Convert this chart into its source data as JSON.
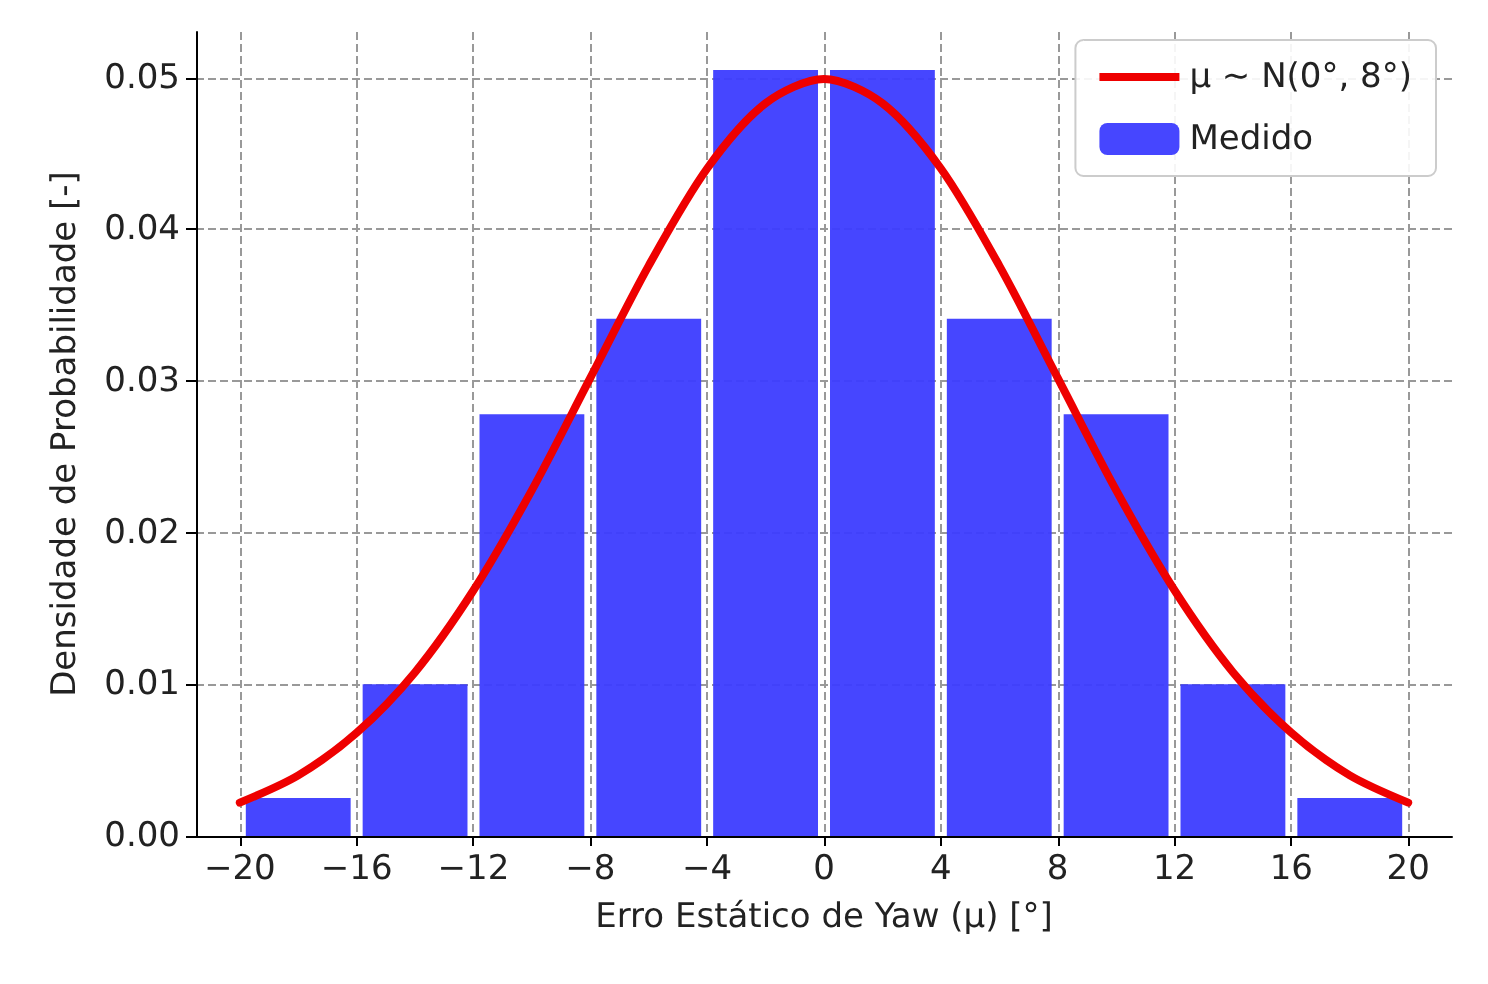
{
  "chart_data": {
    "type": "histogram",
    "xlabel": "Erro Estático de Yaw (μ) [°]",
    "ylabel": "Densidade de Probabilidade [-]",
    "bins": [
      -20,
      -16,
      -12,
      -8,
      -4,
      0,
      4,
      8,
      12,
      16,
      20
    ],
    "series": [
      {
        "type": "line",
        "name": "μ ~ N(0°, 8°)",
        "color": "#ee0000",
        "x": [
          -20,
          -18,
          -16,
          -14,
          -12,
          -10,
          -8,
          -6,
          -4,
          -2,
          0,
          2,
          4,
          6,
          8,
          10,
          12,
          14,
          16,
          18,
          20
        ],
        "values": [
          0.0022,
          0.004,
          0.0068,
          0.0108,
          0.0162,
          0.0228,
          0.0302,
          0.0376,
          0.044,
          0.0483,
          0.0499,
          0.0483,
          0.044,
          0.0376,
          0.0302,
          0.0228,
          0.0162,
          0.0108,
          0.0068,
          0.004,
          0.0022
        ]
      },
      {
        "name": "Medido",
        "color": "#3c3cff",
        "values": [
          0.0025,
          0.01,
          0.0278,
          0.0341,
          0.0505,
          0.0505,
          0.0341,
          0.0278,
          0.01,
          0.0025
        ]
      }
    ],
    "xlim": [
      -21.5,
      21.5
    ],
    "ylim": [
      0,
      0.053
    ],
    "xticks": [
      {
        "value": -20,
        "label": "−20"
      },
      {
        "value": -16,
        "label": "−16"
      },
      {
        "value": -12,
        "label": "−12"
      },
      {
        "value": -8,
        "label": "−8"
      },
      {
        "value": -4,
        "label": "−4"
      },
      0,
      4,
      8,
      12,
      16,
      20
    ],
    "yticks": [
      {
        "value": 0,
        "label": "0.00"
      },
      {
        "value": 0.01,
        "label": "0.01"
      },
      {
        "value": 0.02,
        "label": "0.02"
      },
      {
        "value": 0.03,
        "label": "0.03"
      },
      {
        "value": 0.04,
        "label": "0.04"
      },
      {
        "value": 0.05,
        "label": "0.05"
      }
    ],
    "grid": true,
    "legend": "top right",
    "line_style": "solid",
    "marker": "none"
  }
}
